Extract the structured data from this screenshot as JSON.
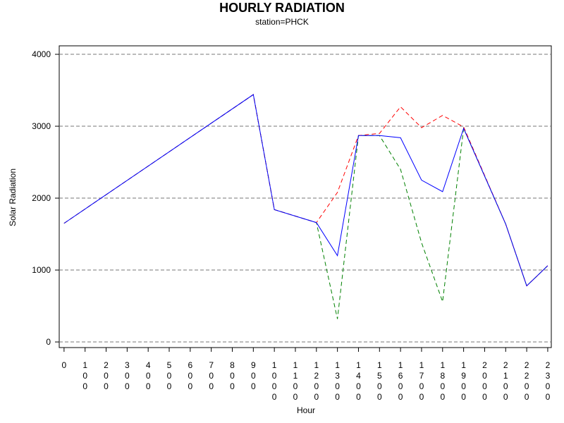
{
  "chart_data": {
    "type": "line",
    "title": "HOURLY RADIATION",
    "subtitle": "station=PHCK",
    "x_label": "Hour",
    "y_label": "Solar Radiation",
    "x": [
      0,
      900,
      1000,
      1200,
      1300,
      1400,
      1500,
      1600,
      1700,
      1800,
      1900,
      2100,
      2200,
      2300
    ],
    "series": [
      {
        "color": "#0000ff",
        "dash": false,
        "values": [
          1650,
          3440,
          1840,
          1660,
          1200,
          2870,
          2870,
          2840,
          2250,
          2090,
          2970,
          1640,
          780,
          1060
        ]
      },
      {
        "color": "#ff0000",
        "dash": true,
        "values": [
          1650,
          3440,
          1840,
          1660,
          2080,
          2870,
          2900,
          3270,
          2980,
          3150,
          2990,
          1640,
          780,
          1060
        ]
      },
      {
        "color": "#008000",
        "dash": true,
        "values": [
          1650,
          3440,
          1840,
          1660,
          320,
          2870,
          2870,
          2400,
          1380,
          560,
          2970,
          1640,
          780,
          1060
        ]
      }
    ],
    "xlim": [
      -23,
      2317
    ],
    "xticks": [
      0,
      100,
      200,
      300,
      400,
      500,
      600,
      700,
      800,
      900,
      1000,
      1100,
      1200,
      1300,
      1400,
      1500,
      1600,
      1700,
      1800,
      1900,
      2000,
      2100,
      2200,
      2300
    ],
    "ylim": [
      -78,
      4118
    ],
    "yticks": [
      0,
      1000,
      2000,
      3000,
      4000
    ],
    "grid": true
  }
}
